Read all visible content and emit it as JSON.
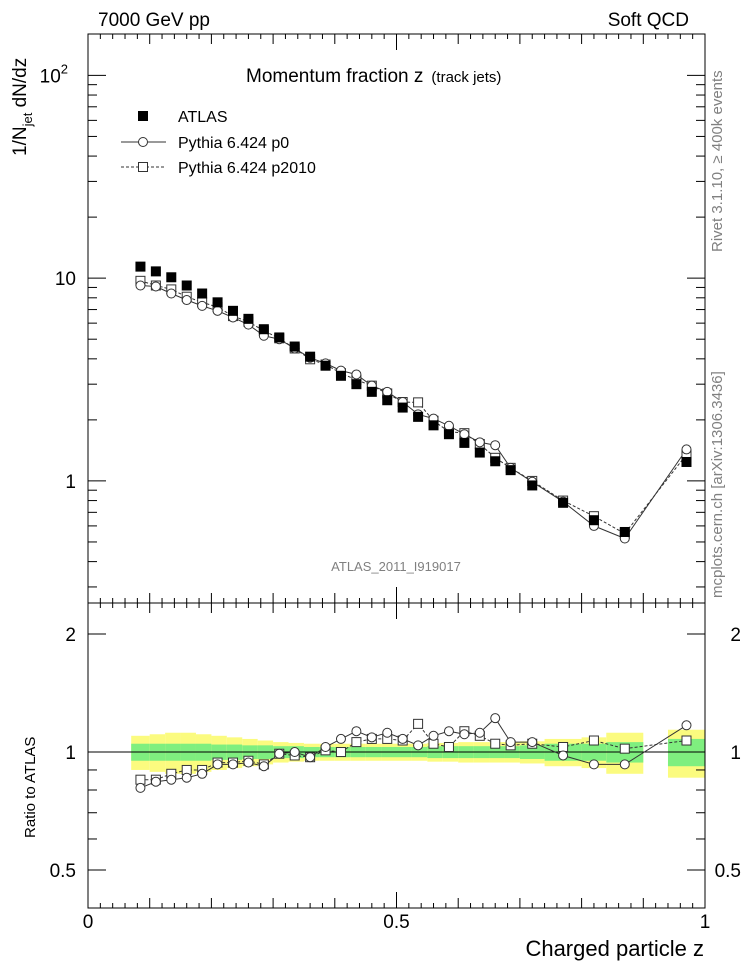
{
  "header": {
    "left": "7000 GeV pp",
    "right": "Soft QCD"
  },
  "side_labels": {
    "rivet": "Rivet 3.1.10, ≥ 400k events",
    "mcplots": "mcplots.cern.ch [arXiv:1306.3436]"
  },
  "chart_data": [
    {
      "type": "scatter",
      "panel": "main",
      "title": "Momentum fraction z",
      "title_note": "(track jets)",
      "analysis_label": "ATLAS_2011_I919017",
      "ylabel": "1/N_jet dN/dz",
      "ylabel_main": "1/N",
      "ylabel_sub": "jet",
      "ylabel_tail": " dN/dz",
      "xlabel": "Charged particle z",
      "yscale": "log",
      "xlim": [
        0,
        1.0
      ],
      "ylim": [
        0.25,
        160
      ],
      "y_ticks": [
        {
          "value": 1,
          "label": "1"
        },
        {
          "value": 10,
          "label": "10"
        },
        {
          "value": 100,
          "label": "10",
          "sup": "2"
        }
      ],
      "x": [
        0.085,
        0.11,
        0.135,
        0.16,
        0.185,
        0.21,
        0.235,
        0.26,
        0.285,
        0.31,
        0.335,
        0.36,
        0.385,
        0.41,
        0.435,
        0.46,
        0.485,
        0.51,
        0.535,
        0.56,
        0.585,
        0.61,
        0.635,
        0.66,
        0.685,
        0.72,
        0.77,
        0.82,
        0.87,
        0.97
      ],
      "series": [
        {
          "name": "ATLAS",
          "marker": "filled-square",
          "values": [
            11.4,
            10.8,
            10.1,
            9.2,
            8.4,
            7.6,
            6.9,
            6.3,
            5.6,
            5.1,
            4.6,
            4.1,
            3.7,
            3.3,
            3.0,
            2.75,
            2.5,
            2.3,
            2.07,
            1.88,
            1.7,
            1.54,
            1.38,
            1.25,
            1.13,
            0.95,
            0.78,
            0.64,
            0.56,
            1.24
          ]
        },
        {
          "name": "Pythia 6.424 p0",
          "marker": "open-circle",
          "line": "solid",
          "values": [
            9.2,
            9.1,
            8.4,
            7.8,
            7.3,
            6.9,
            6.4,
            5.9,
            5.2,
            5.0,
            4.5,
            4.05,
            3.8,
            3.5,
            3.35,
            2.95,
            2.75,
            2.45,
            2.13,
            2.03,
            1.87,
            1.7,
            1.55,
            1.5,
            1.16,
            0.99,
            0.79,
            0.6,
            0.52,
            1.43
          ]
        },
        {
          "name": "Pythia 6.424 p2010",
          "marker": "open-square",
          "line": "dashed",
          "values": [
            9.7,
            9.2,
            8.8,
            8.1,
            7.6,
            7.2,
            6.5,
            6.1,
            5.5,
            5.05,
            4.5,
            3.98,
            3.75,
            3.4,
            3.15,
            2.95,
            2.7,
            2.45,
            2.44,
            1.98,
            1.75,
            1.72,
            1.52,
            1.3,
            1.16,
            1.0,
            0.8,
            0.67,
            0.55,
            1.35
          ]
        }
      ]
    },
    {
      "type": "scatter",
      "panel": "ratio",
      "ylabel": "Ratio to ATLAS",
      "xlabel": "Charged particle z",
      "xlim": [
        0,
        1.0
      ],
      "ylim": [
        0.4,
        2.4
      ],
      "yscale": "log",
      "y_ticks": [
        {
          "value": 0.5,
          "label": "0.5"
        },
        {
          "value": 1,
          "label": "1"
        },
        {
          "value": 2,
          "label": "2"
        }
      ],
      "x_ticks": [
        {
          "value": 0,
          "label": "0"
        },
        {
          "value": 0.5,
          "label": "0.5"
        },
        {
          "value": 1,
          "label": "1"
        }
      ],
      "bands": {
        "bin_edges": [
          0.07,
          0.1,
          0.125,
          0.15,
          0.175,
          0.2,
          0.225,
          0.25,
          0.275,
          0.3,
          0.325,
          0.35,
          0.375,
          0.4,
          0.425,
          0.45,
          0.475,
          0.5,
          0.525,
          0.55,
          0.575,
          0.6,
          0.625,
          0.65,
          0.675,
          0.7,
          0.74,
          0.8,
          0.84,
          0.9,
          0.94,
          1.0
        ],
        "stat_half_width": [
          0.05,
          0.05,
          0.05,
          0.05,
          0.05,
          0.045,
          0.045,
          0.04,
          0.04,
          0.035,
          0.035,
          0.03,
          0.03,
          0.03,
          0.03,
          0.03,
          0.03,
          0.03,
          0.03,
          0.035,
          0.035,
          0.035,
          0.035,
          0.035,
          0.035,
          0.04,
          0.05,
          0.05,
          0.06,
          null,
          0.08
        ],
        "total_half_width": [
          0.1,
          0.11,
          0.12,
          0.12,
          0.11,
          0.1,
          0.09,
          0.08,
          0.07,
          0.06,
          0.055,
          0.05,
          0.05,
          0.05,
          0.05,
          0.05,
          0.05,
          0.05,
          0.05,
          0.055,
          0.055,
          0.06,
          0.06,
          0.06,
          0.06,
          0.065,
          0.08,
          0.09,
          0.12,
          null,
          0.14
        ],
        "stat_color": "#7fef7f",
        "total_color": "#fbfb7f"
      },
      "series": [
        {
          "name": "Pythia 6.424 p0",
          "marker": "open-circle",
          "line": "solid",
          "values": [
            0.81,
            0.84,
            0.85,
            0.86,
            0.88,
            0.93,
            0.93,
            0.94,
            0.92,
            0.99,
            1.0,
            0.97,
            1.03,
            1.08,
            1.13,
            1.09,
            1.12,
            1.08,
            1.04,
            1.1,
            1.13,
            1.11,
            1.12,
            1.22,
            1.06,
            1.06,
            0.98,
            0.93,
            0.93,
            1.17
          ]
        },
        {
          "name": "Pythia 6.424 p2010",
          "marker": "open-square",
          "line": "dashed",
          "values": [
            0.85,
            0.85,
            0.88,
            0.9,
            0.9,
            0.94,
            0.94,
            0.95,
            0.93,
            0.99,
            0.98,
            0.97,
            1.01,
            1.0,
            1.06,
            1.08,
            1.08,
            1.07,
            1.18,
            1.05,
            1.03,
            1.13,
            1.1,
            1.05,
            1.04,
            1.05,
            1.03,
            1.07,
            1.02,
            1.07
          ]
        }
      ]
    }
  ]
}
